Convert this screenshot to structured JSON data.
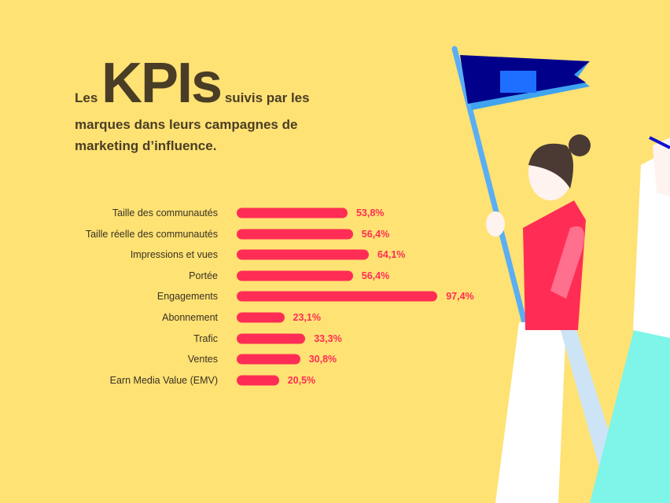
{
  "title": {
    "prefix": "Les",
    "highlight": "KPIs",
    "rest_line1": "suivis par les",
    "rest_line2": "marques dans leurs campagnes de",
    "rest_line3": "marketing d’influence."
  },
  "colors": {
    "background": "#FEE274",
    "bar": "#FF2D55",
    "text": "#4A3D25",
    "flag": "#00008B"
  },
  "chart_data": {
    "type": "bar",
    "orientation": "horizontal",
    "categories": [
      "Taille des communautés",
      "Taille réelle des communautés",
      "Impressions et vues",
      "Portée",
      "Engagements",
      "Abonnement",
      "Trafic",
      "Ventes",
      "Earn Media Value (EMV)"
    ],
    "values": [
      53.8,
      56.4,
      64.1,
      56.4,
      97.4,
      23.1,
      33.3,
      30.8,
      20.5
    ],
    "value_labels": [
      "53,8%",
      "56,4%",
      "64,1%",
      "56,4%",
      "97,4%",
      "23,1%",
      "33,3%",
      "30,8%",
      "20,5%"
    ],
    "xlim": [
      0,
      100
    ],
    "grid": false
  }
}
